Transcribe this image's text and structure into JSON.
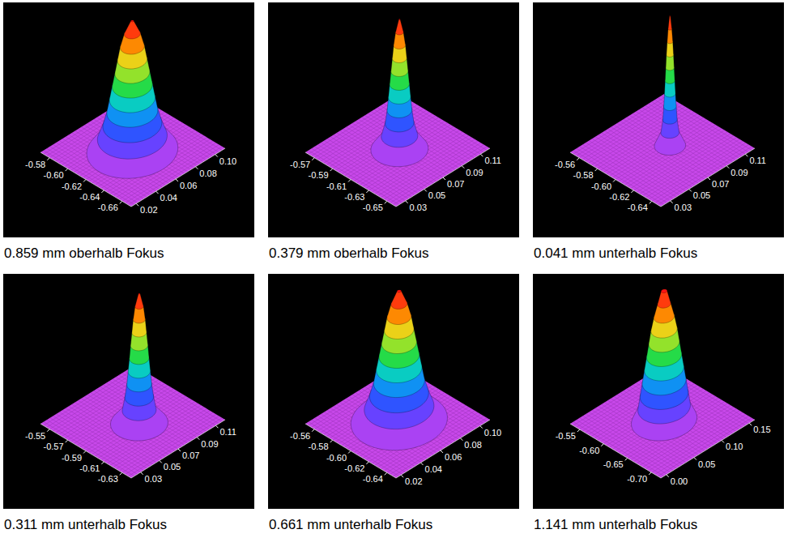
{
  "chart_data": [
    {
      "type": "surface",
      "title": "0.859 mm oberhalb Fokus",
      "xlim": [
        -0.67,
        -0.57
      ],
      "xticks": [
        -0.58,
        {
          "value": -0.6,
          "label": "-0.60"
        },
        -0.62,
        -0.64,
        -0.66
      ],
      "ylim": [
        0.015,
        0.11
      ],
      "yticks": [
        0.02,
        0.04,
        0.06,
        0.08,
        {
          "value": 0.1,
          "label": "0.10"
        }
      ],
      "peak": {
        "x": -0.62,
        "y": 0.062
      },
      "profile": {
        "height": [
          0,
          0.1,
          0.2,
          0.3,
          0.4,
          0.5,
          0.6,
          0.7,
          0.8,
          0.9,
          1.0
        ],
        "radius": [
          0.034,
          0.026,
          0.022,
          0.019,
          0.017,
          0.015,
          0.013,
          0.011,
          0.009,
          0.006,
          0.001
        ]
      }
    },
    {
      "type": "surface",
      "title": "0.379 mm oberhalb Fokus",
      "xlim": [
        -0.66,
        -0.56
      ],
      "xticks": [
        -0.57,
        -0.59,
        -0.61,
        -0.63,
        -0.65
      ],
      "ylim": [
        0.02,
        0.12
      ],
      "yticks": [
        0.03,
        0.05,
        0.07,
        0.09,
        0.11
      ],
      "peak": {
        "x": -0.61,
        "y": 0.072
      },
      "profile": {
        "height": [
          0,
          0.1,
          0.2,
          0.3,
          0.4,
          0.5,
          0.6,
          0.7,
          0.8,
          0.9,
          1.0
        ],
        "radius": [
          0.022,
          0.014,
          0.011,
          0.0095,
          0.0085,
          0.0075,
          0.0065,
          0.0055,
          0.0045,
          0.003,
          0.0005
        ]
      }
    },
    {
      "type": "surface",
      "title": "0.041 mm unterhalb Fokus",
      "xlim": [
        -0.65,
        -0.55
      ],
      "xticks": [
        -0.56,
        -0.58,
        {
          "value": -0.6,
          "label": "-0.60"
        },
        -0.62,
        -0.64
      ],
      "ylim": [
        0.02,
        0.12
      ],
      "yticks": [
        0.03,
        0.05,
        0.07,
        0.09,
        0.11
      ],
      "peak": {
        "x": -0.6,
        "y": 0.078
      },
      "profile": {
        "height": [
          0,
          0.1,
          0.2,
          0.3,
          0.4,
          0.5,
          0.6,
          0.7,
          0.8,
          0.9,
          1.0
        ],
        "radius": [
          0.012,
          0.007,
          0.0055,
          0.0048,
          0.0042,
          0.0037,
          0.0032,
          0.0027,
          0.0021,
          0.0014,
          0.0003
        ]
      }
    },
    {
      "type": "surface",
      "title": "0.311 mm unterhalb Fokus",
      "xlim": [
        -0.64,
        -0.54
      ],
      "xticks": [
        -0.55,
        -0.57,
        -0.59,
        -0.61,
        -0.63
      ],
      "ylim": [
        0.02,
        0.12
      ],
      "yticks": [
        0.03,
        0.05,
        0.07,
        0.09,
        0.11
      ],
      "peak": {
        "x": -0.595,
        "y": 0.072
      },
      "profile": {
        "height": [
          0,
          0.1,
          0.2,
          0.3,
          0.4,
          0.5,
          0.6,
          0.7,
          0.8,
          0.9,
          1.0
        ],
        "radius": [
          0.022,
          0.013,
          0.011,
          0.0095,
          0.0085,
          0.0075,
          0.0066,
          0.0056,
          0.0046,
          0.0032,
          0.0006
        ]
      }
    },
    {
      "type": "surface",
      "title": "0.661 mm unterhalb Fokus",
      "xlim": [
        -0.65,
        -0.55
      ],
      "xticks": [
        -0.56,
        -0.58,
        {
          "value": -0.6,
          "label": "-0.60"
        },
        -0.62,
        -0.64
      ],
      "ylim": [
        0.015,
        0.11
      ],
      "yticks": [
        0.02,
        0.04,
        0.06,
        0.08,
        {
          "value": 0.1,
          "label": "0.10"
        }
      ],
      "peak": {
        "x": -0.6,
        "y": 0.064
      },
      "profile": {
        "height": [
          0,
          0.1,
          0.2,
          0.3,
          0.4,
          0.5,
          0.6,
          0.7,
          0.8,
          0.9,
          1.0
        ],
        "radius": [
          0.036,
          0.026,
          0.022,
          0.019,
          0.017,
          0.015,
          0.013,
          0.011,
          0.009,
          0.006,
          0.0015
        ]
      }
    },
    {
      "type": "surface",
      "title": "1.141 mm unterhalb Fokus",
      "xlim": [
        -0.72,
        -0.53
      ],
      "xticks": [
        -0.55,
        {
          "value": -0.6,
          "label": "-0.60"
        },
        -0.65,
        {
          "value": -0.7,
          "label": "-0.70"
        }
      ],
      "ylim": [
        -0.01,
        0.16
      ],
      "yticks": [
        {
          "value": 0,
          "label": "0.00"
        },
        0.05,
        {
          "value": 0.1,
          "label": "0.10"
        },
        0.15
      ],
      "peak": {
        "x": -0.625,
        "y": 0.078
      },
      "profile": {
        "height": [
          0,
          0.1,
          0.2,
          0.3,
          0.4,
          0.5,
          0.6,
          0.7,
          0.8,
          0.9,
          1.0
        ],
        "radius": [
          0.045,
          0.036,
          0.033,
          0.03,
          0.027,
          0.024,
          0.021,
          0.018,
          0.014,
          0.009,
          0.004
        ]
      }
    }
  ]
}
